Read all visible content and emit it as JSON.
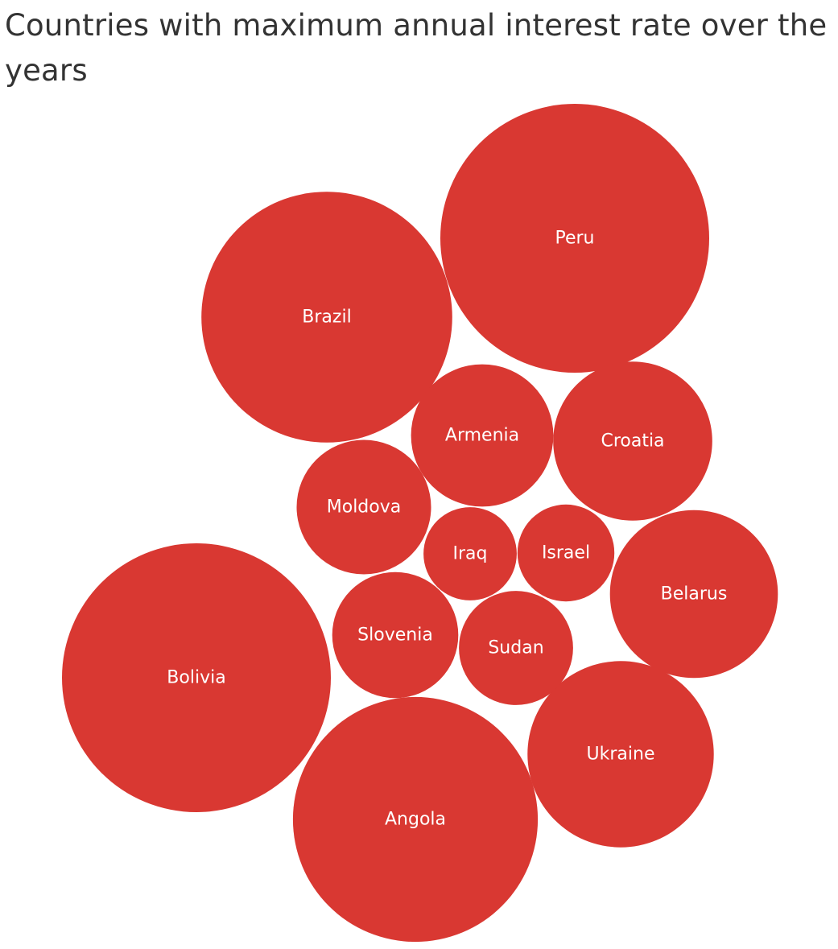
{
  "title": "Countries with maximum annual interest rate over the years",
  "chart_data": {
    "type": "bubble",
    "title": "Countries with maximum annual interest rate over the years",
    "color": "#d93832",
    "label_color": "#ffffff",
    "values_unit": "relative bubble size (not printed)",
    "bubbles": [
      {
        "label": "Peru",
        "value": 100
      },
      {
        "label": "Bolivia",
        "value": 100
      },
      {
        "label": "Brazil",
        "value": 87
      },
      {
        "label": "Angola",
        "value": 83
      },
      {
        "label": "Ukraine",
        "value": 48
      },
      {
        "label": "Belarus",
        "value": 39
      },
      {
        "label": "Croatia",
        "value": 35
      },
      {
        "label": "Armenia",
        "value": 28
      },
      {
        "label": "Moldova",
        "value": 25
      },
      {
        "label": "Slovenia",
        "value": 22
      },
      {
        "label": "Sudan",
        "value": 18
      },
      {
        "label": "Israel",
        "value": 13
      },
      {
        "label": "Iraq",
        "value": 12
      }
    ]
  }
}
